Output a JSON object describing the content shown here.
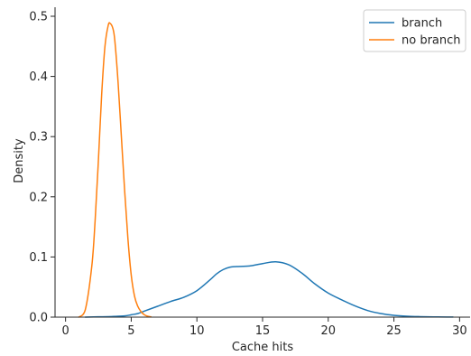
{
  "chart_data": {
    "type": "line",
    "title": "",
    "xlabel": "Cache hits",
    "ylabel": "Density",
    "xlim": [
      -0.8,
      30.8
    ],
    "ylim": [
      0,
      0.515
    ],
    "x_ticks": [
      0,
      5,
      10,
      15,
      20,
      25,
      30
    ],
    "y_ticks": [
      0.0,
      0.1,
      0.2,
      0.3,
      0.4,
      0.5
    ],
    "x_tick_labels": [
      "0",
      "5",
      "10",
      "15",
      "20",
      "25",
      "30"
    ],
    "y_tick_labels": [
      "0.0",
      "0.1",
      "0.2",
      "0.3",
      "0.4",
      "0.5"
    ],
    "grid": false,
    "legend_position": "top-right",
    "series": [
      {
        "name": "branch",
        "color": "#1f77b4",
        "x": [
          1.5,
          2.5,
          3.5,
          4.5,
          5.0,
          5.5,
          6.0,
          7.0,
          8.0,
          9.0,
          10.0,
          11.0,
          11.5,
          12.0,
          12.5,
          13.0,
          14.0,
          15.0,
          16.0,
          17.0,
          18.0,
          19.0,
          20.0,
          21.0,
          22.0,
          23.0,
          24.0,
          25.0,
          26.0,
          27.0,
          28.0,
          29.0,
          29.5
        ],
        "y": [
          0.0,
          0.0005,
          0.001,
          0.002,
          0.004,
          0.006,
          0.01,
          0.018,
          0.026,
          0.033,
          0.044,
          0.062,
          0.072,
          0.079,
          0.083,
          0.084,
          0.085,
          0.089,
          0.092,
          0.087,
          0.073,
          0.055,
          0.04,
          0.029,
          0.019,
          0.011,
          0.006,
          0.003,
          0.0015,
          0.0008,
          0.0004,
          0.0002,
          0.0001
        ]
      },
      {
        "name": "no branch",
        "color": "#ff7f0e",
        "x": [
          1.0,
          1.5,
          2.0,
          2.25,
          2.5,
          2.75,
          3.0,
          3.25,
          3.4,
          3.6,
          3.75,
          4.0,
          4.25,
          4.5,
          4.75,
          5.0,
          5.25,
          5.5,
          5.75,
          6.0,
          6.25,
          6.5
        ],
        "y": [
          0.0,
          0.012,
          0.085,
          0.16,
          0.26,
          0.37,
          0.45,
          0.485,
          0.488,
          0.48,
          0.46,
          0.39,
          0.3,
          0.21,
          0.13,
          0.07,
          0.035,
          0.018,
          0.009,
          0.004,
          0.0015,
          0.0005
        ]
      }
    ]
  }
}
